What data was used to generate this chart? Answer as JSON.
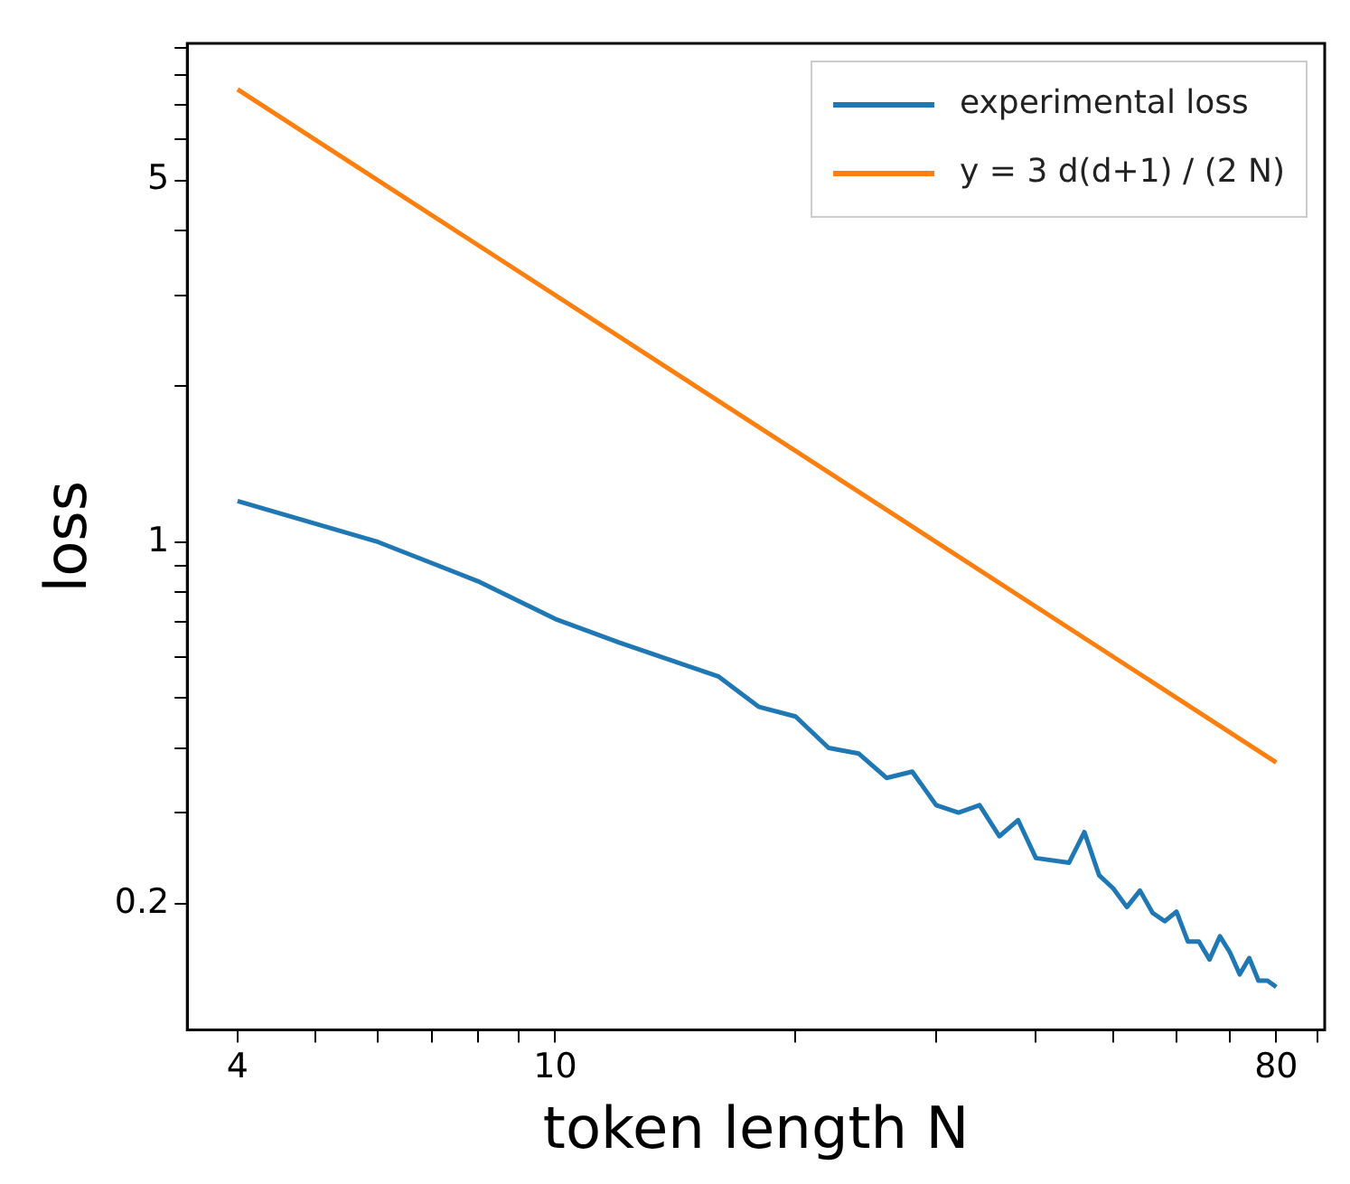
{
  "chart_data": {
    "type": "line",
    "xlabel": "token length N",
    "ylabel": "loss",
    "log": "xy",
    "grid": false,
    "legend": "top right",
    "line_style": "solid",
    "marker": "none",
    "xlim": [
      3.46,
      92
    ],
    "ylim": [
      0.114,
      9.2
    ],
    "xticks": [
      4,
      {
        "value": 5,
        "label": null
      },
      {
        "value": 6,
        "label": null
      },
      {
        "value": 7,
        "label": null
      },
      {
        "value": 8,
        "label": null
      },
      {
        "value": 9,
        "label": null
      },
      10,
      {
        "value": 20,
        "label": null
      },
      {
        "value": 30,
        "label": null
      },
      {
        "value": 40,
        "label": null
      },
      {
        "value": 50,
        "label": null
      },
      {
        "value": 60,
        "label": null
      },
      {
        "value": 70,
        "label": null
      },
      80,
      {
        "value": 90,
        "label": null
      }
    ],
    "yticks": [
      {
        "value": 0.2,
        "label": "0.2"
      },
      {
        "value": 0.3,
        "label": null
      },
      {
        "value": 0.4,
        "label": null
      },
      {
        "value": 0.5,
        "label": null
      },
      {
        "value": 0.6,
        "label": null
      },
      {
        "value": 0.7,
        "label": null
      },
      {
        "value": 0.8,
        "label": null
      },
      {
        "value": 0.9,
        "label": null
      },
      1,
      {
        "value": 2,
        "label": null
      },
      {
        "value": 3,
        "label": null
      },
      {
        "value": 4,
        "label": null
      },
      5,
      {
        "value": 6,
        "label": null
      },
      {
        "value": 7,
        "label": null
      },
      {
        "value": 8,
        "label": null
      },
      {
        "value": 9,
        "label": null
      }
    ],
    "series": [
      {
        "name": "experimental loss",
        "color": "#1f77b4",
        "x": [
          4,
          6,
          8,
          10,
          12,
          14,
          16,
          18,
          20,
          22,
          24,
          26,
          28,
          30,
          32,
          34,
          36,
          38,
          40,
          44,
          46,
          48,
          50,
          52,
          54,
          56,
          58,
          60,
          62,
          64,
          66,
          68,
          70,
          72,
          74,
          76,
          78,
          80
        ],
        "values": [
          1.2,
          1.0,
          0.84,
          0.71,
          0.64,
          0.59,
          0.55,
          0.48,
          0.46,
          0.4,
          0.39,
          0.35,
          0.36,
          0.31,
          0.3,
          0.31,
          0.27,
          0.29,
          0.245,
          0.24,
          0.275,
          0.227,
          0.214,
          0.197,
          0.212,
          0.192,
          0.185,
          0.193,
          0.169,
          0.169,
          0.156,
          0.173,
          0.161,
          0.146,
          0.157,
          0.142,
          0.142,
          0.138
        ]
      },
      {
        "name": "y = 3 d(d+1) / (2 N)",
        "color": "#ff7f0e",
        "x": [
          4,
          80
        ],
        "values": [
          7.5,
          0.375
        ]
      }
    ]
  }
}
